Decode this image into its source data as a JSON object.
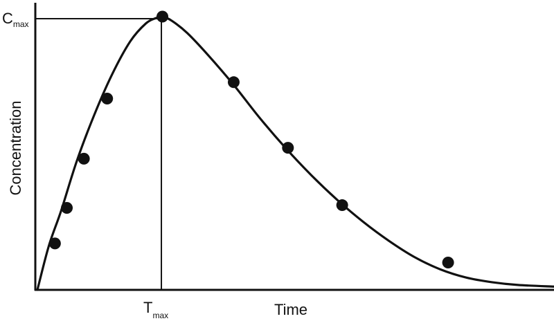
{
  "chart_data": {
    "type": "line",
    "xlabel": "Time",
    "ylabel": "Concentration",
    "xlim": [
      0,
      10
    ],
    "ylim": [
      0,
      1
    ],
    "grid": false,
    "legend": "none",
    "annotations": {
      "cmax": {
        "main": "C",
        "sub": "max",
        "x": 2.4,
        "y": 1.0
      },
      "tmax": {
        "main": "T",
        "sub": "max",
        "x": 2.4,
        "y": 1.0
      }
    },
    "series": [
      {
        "kind": "curve",
        "x": [
          0,
          0.22,
          0.46,
          0.76,
          1.1,
          1.45,
          1.8,
          2.1,
          2.3,
          2.42,
          2.6,
          2.9,
          3.3,
          3.8,
          4.3,
          4.8,
          5.3,
          5.8,
          6.3,
          6.8,
          7.3,
          7.8,
          8.3,
          8.8,
          9.3,
          10.0
        ],
        "y": [
          0,
          0.16,
          0.29,
          0.47,
          0.64,
          0.79,
          0.91,
          0.975,
          0.995,
          1.0,
          0.985,
          0.94,
          0.86,
          0.75,
          0.63,
          0.52,
          0.42,
          0.33,
          0.25,
          0.18,
          0.12,
          0.075,
          0.045,
          0.028,
          0.018,
          0.012
        ]
      },
      {
        "kind": "points",
        "x": [
          0.34,
          0.57,
          0.9,
          1.35,
          2.42,
          3.8,
          4.85,
          5.9,
          7.95
        ],
        "y": [
          0.17,
          0.3,
          0.48,
          0.7,
          1.0,
          0.76,
          0.52,
          0.31,
          0.1
        ]
      }
    ]
  },
  "colors": {
    "line": "#111111",
    "point": "#111111",
    "background": "#ffffff"
  }
}
